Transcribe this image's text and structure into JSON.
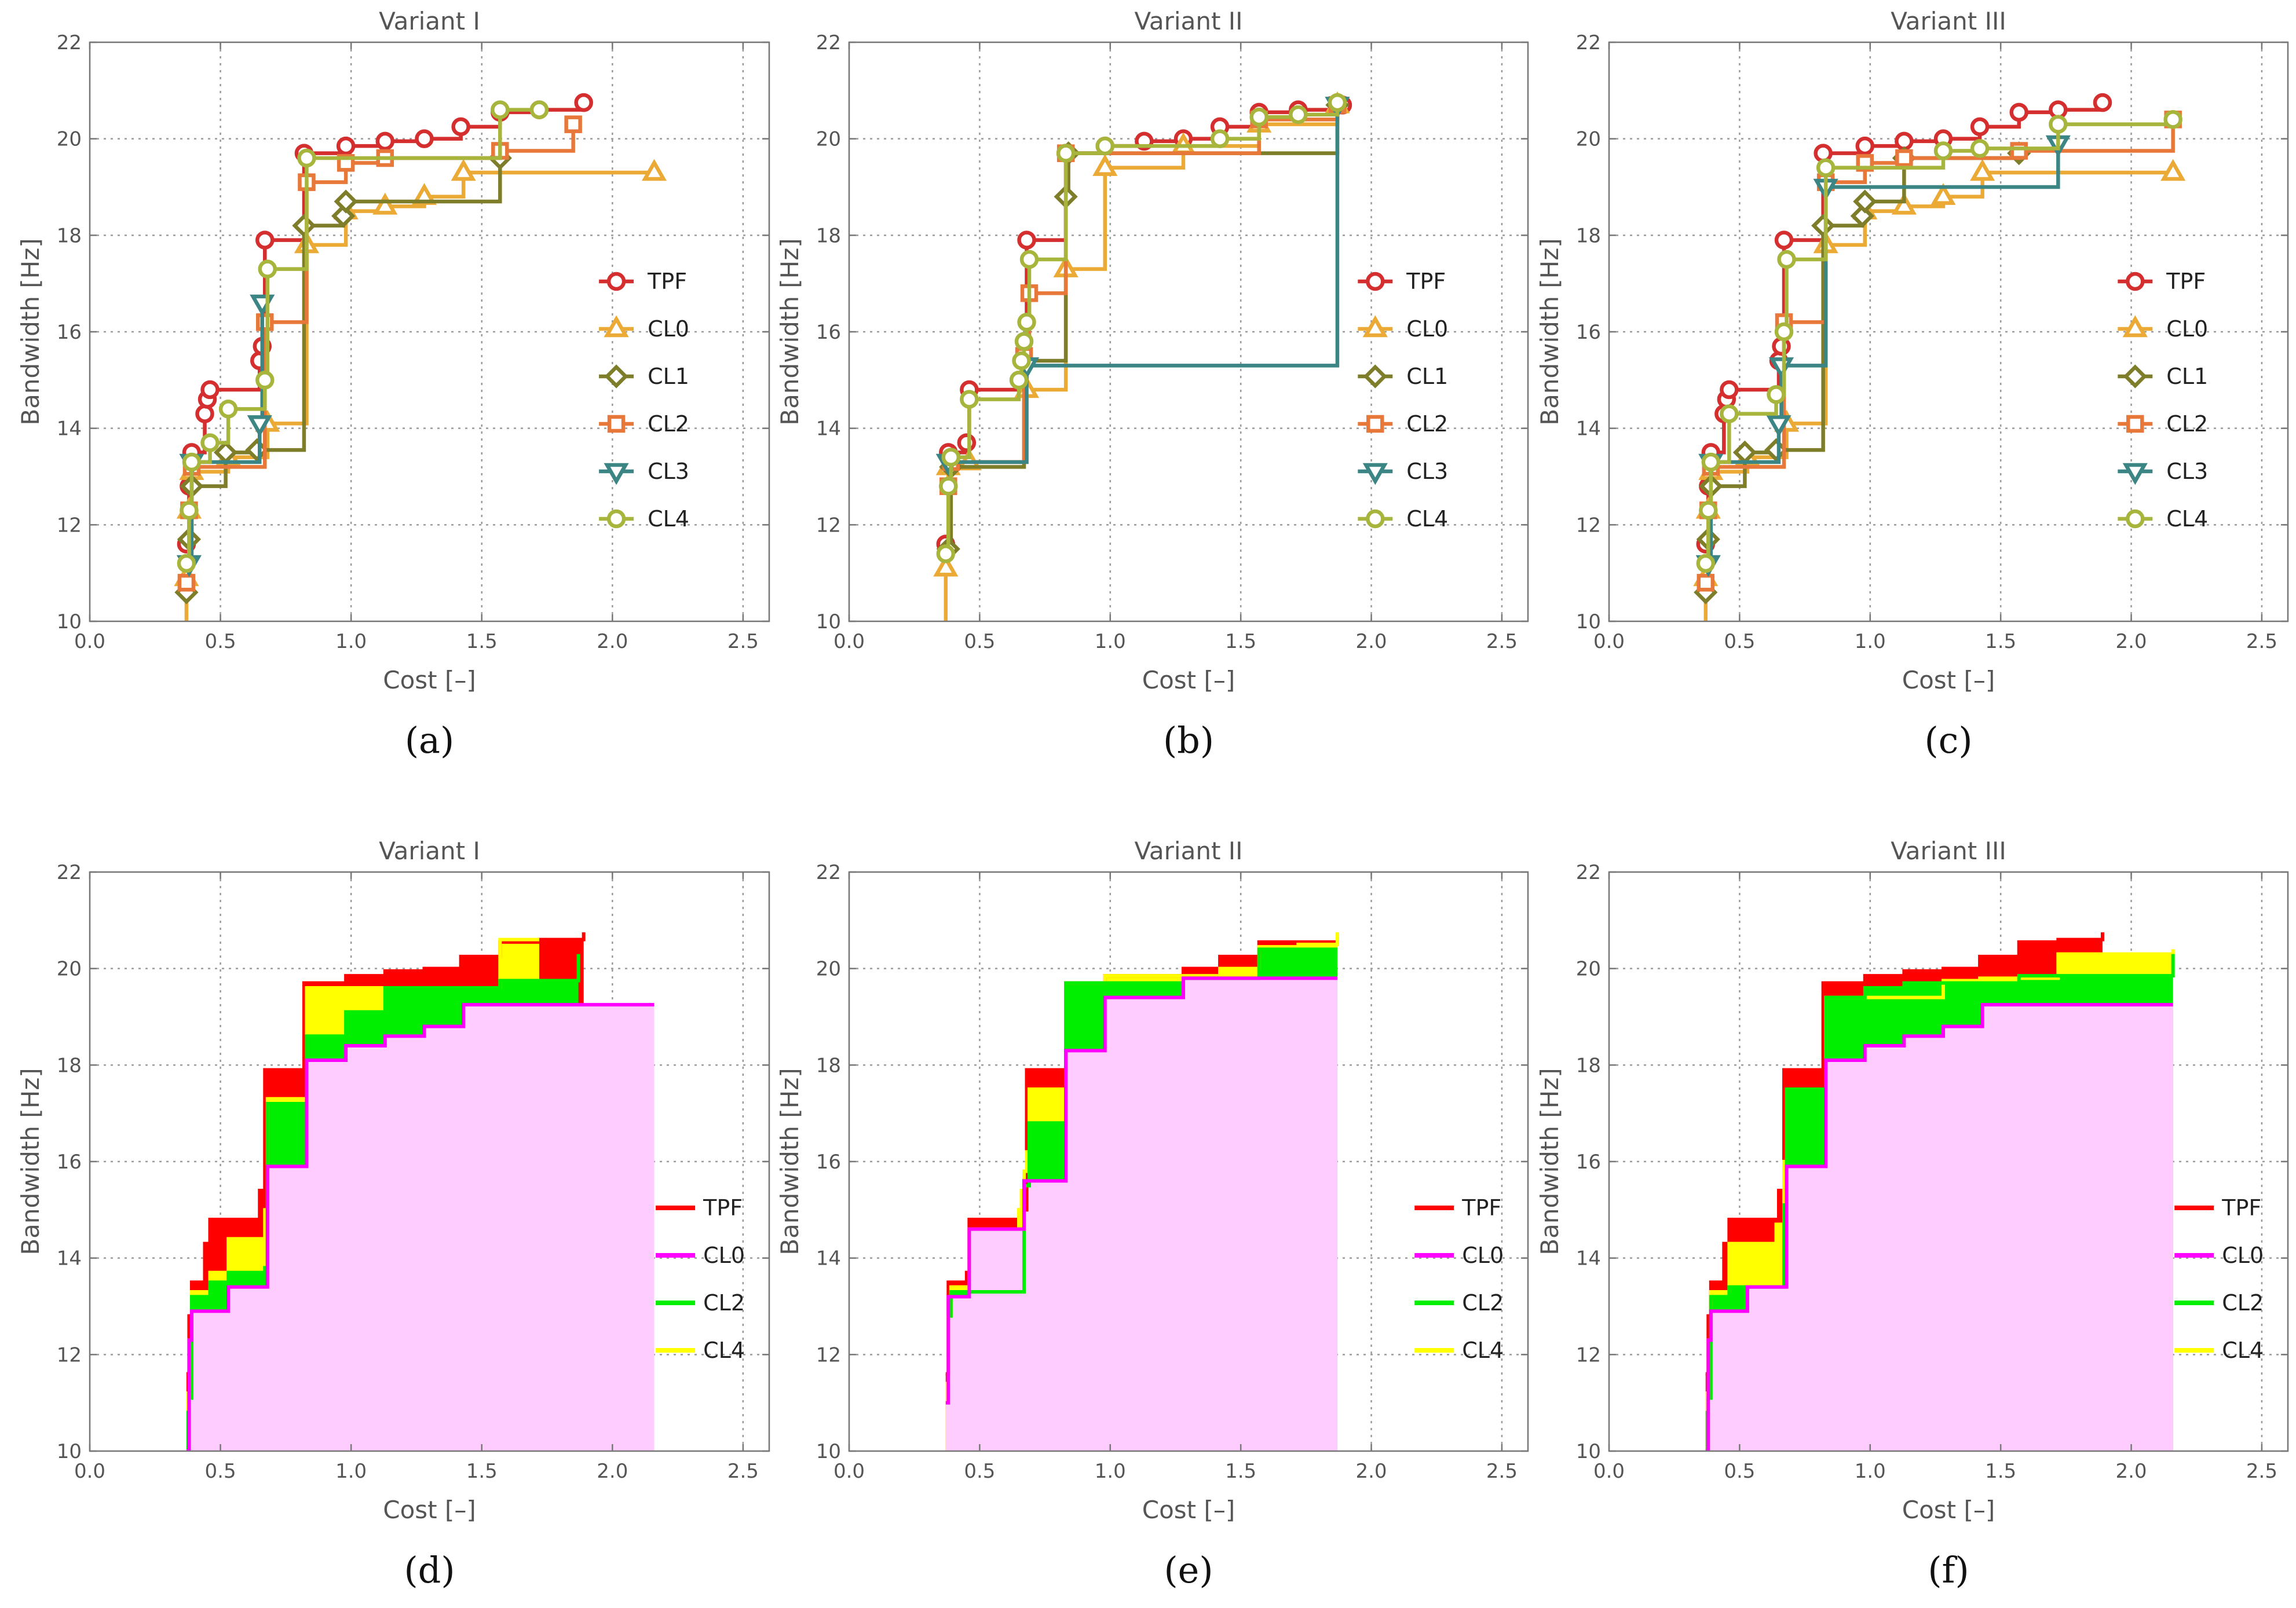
{
  "colors": {
    "TPF": "#d42e2e",
    "CL0": "#ebaa35",
    "CL1": "#7d7d2a",
    "CL2": "#e8773a",
    "CL3": "#3c8585",
    "CL4": "#a8b53c",
    "fill_TPF": "#ff0000",
    "fill_CL0_line": "#ff00ff",
    "fill_CL0_area": "#ffccff",
    "fill_CL2": "#00ee00",
    "fill_CL4": "#ffff00",
    "grid": "#9a9a9a",
    "text": "#555555",
    "axis": "#777777"
  },
  "chart_data": [
    {
      "panel": "(a)",
      "type": "line",
      "title": "Variant I",
      "xlabel": "Cost [–]",
      "ylabel": "Bandwidth [Hz]",
      "xlim": [
        0,
        2.6
      ],
      "ylim": [
        10,
        22
      ],
      "xticks": [
        "0.0",
        "0.5",
        "1.0",
        "1.5",
        "2.0",
        "2.5"
      ],
      "yticks": [
        "10",
        "12",
        "14",
        "16",
        "18",
        "20",
        "22"
      ],
      "legend_position": "right-middle",
      "grid": true,
      "series": [
        {
          "name": "TPF",
          "marker": "circle",
          "x": [
            0.37,
            0.38,
            0.39,
            0.44,
            0.45,
            0.46,
            0.65,
            0.66,
            0.67,
            0.82,
            0.98,
            1.13,
            1.28,
            1.42,
            1.57,
            1.72,
            1.89
          ],
          "y": [
            11.6,
            12.8,
            13.5,
            14.3,
            14.6,
            14.8,
            15.4,
            15.7,
            17.9,
            19.7,
            19.85,
            19.95,
            20.0,
            20.25,
            20.55,
            20.6,
            20.75
          ]
        },
        {
          "name": "CL0",
          "marker": "triangle-up",
          "x": [
            0.37,
            0.38,
            0.39,
            0.53,
            0.68,
            0.83,
            0.98,
            1.13,
            1.28,
            1.43,
            2.16
          ],
          "y": [
            10.9,
            12.3,
            13.1,
            13.4,
            14.1,
            17.8,
            18.5,
            18.6,
            18.8,
            19.3,
            19.3
          ]
        },
        {
          "name": "CL1",
          "marker": "diamond",
          "x": [
            0.37,
            0.38,
            0.39,
            0.52,
            0.64,
            0.82,
            0.97,
            0.98,
            1.57
          ],
          "y": [
            10.6,
            11.7,
            12.8,
            13.5,
            13.55,
            18.2,
            18.4,
            18.7,
            19.6
          ]
        },
        {
          "name": "CL2",
          "marker": "square",
          "x": [
            0.37,
            0.38,
            0.39,
            0.67,
            0.83,
            0.98,
            1.13,
            1.57,
            1.85
          ],
          "y": [
            10.8,
            12.3,
            13.2,
            16.2,
            19.1,
            19.5,
            19.6,
            19.75,
            20.3
          ]
        },
        {
          "name": "CL3",
          "marker": "triangle-down",
          "x": [
            0.38,
            0.39,
            0.65,
            0.66
          ],
          "y": [
            11.2,
            13.3,
            14.1,
            16.6
          ]
        },
        {
          "name": "CL4",
          "marker": "circle",
          "x": [
            0.37,
            0.38,
            0.39,
            0.46,
            0.53,
            0.67,
            0.68,
            0.83,
            1.57,
            1.72
          ],
          "y": [
            11.2,
            12.3,
            13.3,
            13.7,
            14.4,
            15.0,
            17.3,
            19.6,
            20.6,
            20.6
          ]
        }
      ]
    },
    {
      "panel": "(b)",
      "type": "line",
      "title": "Variant II",
      "xlabel": "Cost [–]",
      "ylabel": "Bandwidth [Hz]",
      "xlim": [
        0,
        2.6
      ],
      "ylim": [
        10,
        22
      ],
      "xticks": [
        "0.0",
        "0.5",
        "1.0",
        "1.5",
        "2.0",
        "2.5"
      ],
      "yticks": [
        "10",
        "12",
        "14",
        "16",
        "18",
        "20",
        "22"
      ],
      "legend_position": "right-middle",
      "grid": true,
      "series": [
        {
          "name": "TPF",
          "marker": "circle",
          "x": [
            0.37,
            0.38,
            0.45,
            0.46,
            0.68,
            0.83,
            0.98,
            1.13,
            1.28,
            1.42,
            1.57,
            1.72,
            1.89
          ],
          "y": [
            11.6,
            13.5,
            13.7,
            14.8,
            17.9,
            19.7,
            19.85,
            19.95,
            20.0,
            20.25,
            20.55,
            20.6,
            20.7
          ]
        },
        {
          "name": "CL0",
          "marker": "triangle-up",
          "x": [
            0.37,
            0.38,
            0.46,
            0.68,
            0.83,
            0.98,
            1.28,
            1.57,
            1.87
          ],
          "y": [
            11.1,
            13.2,
            13.3,
            14.8,
            17.3,
            19.4,
            19.85,
            20.3,
            20.7
          ]
        },
        {
          "name": "CL1",
          "marker": "diamond",
          "x": [
            0.38,
            0.39,
            0.67,
            0.83,
            0.84,
            1.87
          ],
          "y": [
            11.5,
            13.2,
            15.4,
            18.8,
            19.7,
            20.7
          ]
        },
        {
          "name": "CL2",
          "marker": "square",
          "x": [
            0.38,
            0.39,
            0.67,
            0.69,
            0.83,
            1.57,
            1.87
          ],
          "y": [
            12.8,
            13.3,
            15.5,
            16.8,
            19.7,
            20.4,
            20.7
          ]
        },
        {
          "name": "CL3",
          "marker": "triangle-down",
          "x": [
            0.38,
            0.68,
            1.87
          ],
          "y": [
            13.3,
            15.3,
            20.7
          ]
        },
        {
          "name": "CL4",
          "marker": "circle",
          "x": [
            0.37,
            0.38,
            0.39,
            0.46,
            0.65,
            0.66,
            0.67,
            0.68,
            0.69,
            0.83,
            0.98,
            1.42,
            1.57,
            1.72,
            1.87
          ],
          "y": [
            11.4,
            12.8,
            13.4,
            14.6,
            15.0,
            15.4,
            15.8,
            16.2,
            17.5,
            19.7,
            19.85,
            20.0,
            20.45,
            20.5,
            20.75
          ]
        }
      ]
    },
    {
      "panel": "(c)",
      "type": "line",
      "title": "Variant III",
      "xlabel": "Cost [–]",
      "ylabel": "Bandwidth [Hz]",
      "xlim": [
        0,
        2.6
      ],
      "ylim": [
        10,
        22
      ],
      "xticks": [
        "0.0",
        "0.5",
        "1.0",
        "1.5",
        "2.0",
        "2.5"
      ],
      "yticks": [
        "10",
        "12",
        "14",
        "16",
        "18",
        "20",
        "22"
      ],
      "legend_position": "right-middle",
      "grid": true,
      "series": [
        {
          "name": "TPF",
          "marker": "circle",
          "x": [
            0.37,
            0.38,
            0.39,
            0.44,
            0.45,
            0.46,
            0.65,
            0.66,
            0.67,
            0.82,
            0.98,
            1.13,
            1.28,
            1.42,
            1.57,
            1.72,
            1.89
          ],
          "y": [
            11.6,
            12.8,
            13.5,
            14.3,
            14.6,
            14.8,
            15.4,
            15.7,
            17.9,
            19.7,
            19.85,
            19.95,
            20.0,
            20.25,
            20.55,
            20.6,
            20.75
          ]
        },
        {
          "name": "CL0",
          "marker": "triangle-up",
          "x": [
            0.37,
            0.38,
            0.39,
            0.53,
            0.68,
            0.83,
            0.98,
            1.13,
            1.28,
            1.43,
            2.16
          ],
          "y": [
            10.9,
            12.3,
            13.1,
            13.4,
            14.1,
            17.8,
            18.5,
            18.6,
            18.8,
            19.3,
            19.3
          ]
        },
        {
          "name": "CL1",
          "marker": "diamond",
          "x": [
            0.37,
            0.38,
            0.39,
            0.52,
            0.64,
            0.82,
            0.97,
            0.98,
            1.13,
            1.57
          ],
          "y": [
            10.6,
            11.7,
            12.8,
            13.5,
            13.55,
            18.2,
            18.4,
            18.7,
            19.6,
            19.7
          ]
        },
        {
          "name": "CL2",
          "marker": "square",
          "x": [
            0.37,
            0.38,
            0.39,
            0.67,
            0.83,
            0.98,
            1.13,
            1.57,
            2.16
          ],
          "y": [
            10.8,
            12.3,
            13.2,
            16.2,
            19.1,
            19.5,
            19.6,
            19.75,
            20.4
          ]
        },
        {
          "name": "CL3",
          "marker": "triangle-down",
          "x": [
            0.38,
            0.39,
            0.65,
            0.66,
            0.83,
            1.72
          ],
          "y": [
            11.2,
            13.3,
            14.1,
            15.3,
            19.0,
            19.9
          ]
        },
        {
          "name": "CL4",
          "marker": "circle",
          "x": [
            0.37,
            0.38,
            0.39,
            0.46,
            0.64,
            0.67,
            0.68,
            0.83,
            1.28,
            1.42,
            1.72,
            2.16
          ],
          "y": [
            11.2,
            12.3,
            13.3,
            14.3,
            14.7,
            16.0,
            17.5,
            19.4,
            19.75,
            19.8,
            20.3,
            20.4
          ]
        }
      ]
    },
    {
      "panel": "(d)",
      "type": "area",
      "title": "Variant I",
      "xlabel": "Cost [–]",
      "ylabel": "Bandwidth [Hz]",
      "xlim": [
        0,
        2.6
      ],
      "ylim": [
        10,
        22
      ],
      "xticks": [
        "0.0",
        "0.5",
        "1.0",
        "1.5",
        "2.0",
        "2.5"
      ],
      "yticks": [
        "10",
        "12",
        "14",
        "16",
        "18",
        "20",
        "22"
      ],
      "legend_position": "right-lower",
      "grid": true,
      "series": [
        {
          "name": "TPF",
          "x": [
            0.37,
            0.38,
            0.39,
            0.44,
            0.46,
            0.65,
            0.67,
            0.82,
            0.98,
            1.13,
            1.28,
            1.42,
            1.57,
            1.72,
            1.89
          ],
          "y": [
            11.6,
            12.8,
            13.5,
            14.3,
            14.8,
            15.4,
            17.9,
            19.7,
            19.85,
            19.95,
            20.0,
            20.25,
            20.55,
            20.6,
            20.75
          ]
        },
        {
          "name": "CL0",
          "x": [
            0.37,
            0.38,
            0.39,
            0.53,
            0.68,
            0.83,
            0.98,
            1.13,
            1.28,
            1.43,
            2.16
          ],
          "y": [
            10.0,
            12.3,
            12.9,
            13.4,
            15.9,
            18.1,
            18.4,
            18.6,
            18.8,
            19.25,
            19.25
          ]
        },
        {
          "name": "CL2",
          "x": [
            0.37,
            0.38,
            0.39,
            0.46,
            0.53,
            0.67,
            0.68,
            0.83,
            0.98,
            1.13,
            1.57,
            1.87
          ],
          "y": [
            10.8,
            11.1,
            13.2,
            13.5,
            13.7,
            13.8,
            17.2,
            18.6,
            19.1,
            19.6,
            19.75,
            20.3
          ]
        },
        {
          "name": "CL4",
          "x": [
            0.37,
            0.38,
            0.39,
            0.46,
            0.53,
            0.67,
            0.68,
            0.83,
            1.57,
            1.72
          ],
          "y": [
            11.2,
            12.3,
            13.3,
            13.7,
            14.4,
            15.0,
            17.3,
            19.6,
            20.6,
            20.6
          ]
        }
      ]
    },
    {
      "panel": "(e)",
      "type": "area",
      "title": "Variant II",
      "xlabel": "Cost [–]",
      "ylabel": "Bandwidth [Hz]",
      "xlim": [
        0,
        2.6
      ],
      "ylim": [
        10,
        22
      ],
      "xticks": [
        "0.0",
        "0.5",
        "1.0",
        "1.5",
        "2.0",
        "2.5"
      ],
      "yticks": [
        "10",
        "12",
        "14",
        "16",
        "18",
        "20",
        "22"
      ],
      "legend_position": "right-lower",
      "grid": true,
      "series": [
        {
          "name": "TPF",
          "x": [
            0.37,
            0.38,
            0.45,
            0.46,
            0.65,
            0.68,
            0.83,
            0.98,
            1.28,
            1.42,
            1.57,
            1.87
          ],
          "y": [
            11.6,
            13.5,
            13.7,
            14.8,
            15.0,
            17.9,
            19.7,
            19.85,
            20.0,
            20.25,
            20.55,
            20.65
          ]
        },
        {
          "name": "CL0",
          "x": [
            0.37,
            0.38,
            0.46,
            0.67,
            0.83,
            0.98,
            1.28,
            1.57,
            1.87
          ],
          "y": [
            11.0,
            13.2,
            14.6,
            15.6,
            18.3,
            19.4,
            19.8,
            19.8,
            19.8
          ]
        },
        {
          "name": "CL2",
          "x": [
            0.38,
            0.39,
            0.67,
            0.69,
            0.83,
            1.28,
            1.57,
            1.87
          ],
          "y": [
            12.8,
            13.3,
            15.5,
            16.8,
            19.7,
            19.8,
            20.4,
            20.4
          ]
        },
        {
          "name": "CL4",
          "x": [
            0.37,
            0.38,
            0.39,
            0.46,
            0.65,
            0.66,
            0.67,
            0.68,
            0.69,
            0.83,
            0.98,
            1.42,
            1.57,
            1.72,
            1.87
          ],
          "y": [
            11.4,
            12.8,
            13.4,
            14.6,
            15.0,
            15.4,
            15.8,
            16.2,
            17.5,
            19.7,
            19.85,
            20.0,
            20.45,
            20.5,
            20.75
          ]
        }
      ]
    },
    {
      "panel": "(f)",
      "type": "area",
      "title": "Variant III",
      "xlabel": "Cost [–]",
      "ylabel": "Bandwidth [Hz]",
      "xlim": [
        0,
        2.6
      ],
      "ylim": [
        10,
        22
      ],
      "xticks": [
        "0.0",
        "0.5",
        "1.0",
        "1.5",
        "2.0",
        "2.5"
      ],
      "yticks": [
        "10",
        "12",
        "14",
        "16",
        "18",
        "20",
        "22"
      ],
      "legend_position": "right-lower",
      "grid": true,
      "series": [
        {
          "name": "TPF",
          "x": [
            0.37,
            0.38,
            0.39,
            0.44,
            0.46,
            0.65,
            0.67,
            0.82,
            0.98,
            1.13,
            1.28,
            1.42,
            1.57,
            1.72,
            1.89
          ],
          "y": [
            11.6,
            12.8,
            13.5,
            14.3,
            14.8,
            15.4,
            17.9,
            19.7,
            19.85,
            19.95,
            20.0,
            20.25,
            20.55,
            20.6,
            20.75
          ]
        },
        {
          "name": "CL0",
          "x": [
            0.37,
            0.38,
            0.39,
            0.53,
            0.68,
            0.83,
            0.98,
            1.13,
            1.28,
            1.43,
            2.16
          ],
          "y": [
            10.0,
            12.3,
            12.9,
            13.4,
            15.9,
            18.1,
            18.4,
            18.6,
            18.8,
            19.25,
            19.25
          ]
        },
        {
          "name": "CL2",
          "x": [
            0.37,
            0.38,
            0.39,
            0.46,
            0.67,
            0.68,
            0.83,
            0.98,
            1.13,
            1.57,
            2.16
          ],
          "y": [
            10.8,
            11.1,
            13.2,
            13.4,
            15.1,
            17.5,
            19.4,
            19.6,
            19.7,
            19.85,
            20.3
          ]
        },
        {
          "name": "CL4",
          "x": [
            0.37,
            0.38,
            0.39,
            0.46,
            0.64,
            0.67,
            0.68,
            0.83,
            1.28,
            1.42,
            1.72,
            2.16
          ],
          "y": [
            11.2,
            12.3,
            13.3,
            14.3,
            14.7,
            16.0,
            17.5,
            19.4,
            19.75,
            19.8,
            20.3,
            20.4
          ]
        }
      ]
    }
  ]
}
